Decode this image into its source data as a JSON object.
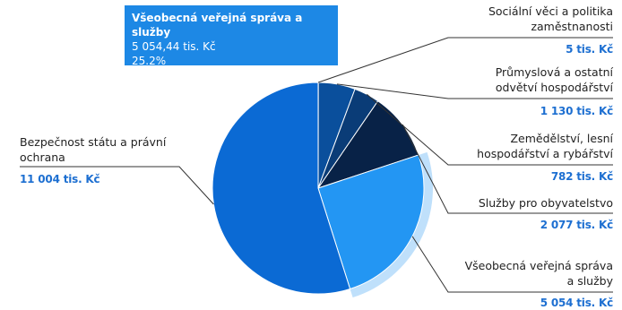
{
  "tooltip": {
    "title": "Všeobecná veřejná správa a služby",
    "value": "5 054,44 tis. Kč",
    "percent": "25.2%"
  },
  "colors": {
    "slice_bezpecnost": "#0b6ad4",
    "slice_socialni": "#0d5fb8",
    "slice_prumysl": "#0a4f9c",
    "slice_zemedelstvi": "#0a3c77",
    "slice_sluzby": "#082247",
    "slice_verejna": "#2396f3",
    "slice_hover_halo": "#bfe0fb",
    "connector": "#333333",
    "value_text": "#1d6fd1"
  },
  "chart_data": {
    "type": "pie",
    "slices": [
      {
        "name_lines": [
          "Bezpečnost státu a právní",
          "ochrana"
        ],
        "value": 11004,
        "value_label": "11 004 tis. Kč",
        "color_key": "slice_bezpecnost"
      },
      {
        "name_lines": [
          "Sociální věci a politika",
          "zaměstnanosti"
        ],
        "value": 5,
        "value_label": "5 tis. Kč",
        "color_key": "slice_socialni"
      },
      {
        "name_lines": [
          "Průmyslová a ostatní",
          "odvětví hospodářství"
        ],
        "value": 1130,
        "value_label": "1 130 tis. Kč",
        "color_key": "slice_prumysl"
      },
      {
        "name_lines": [
          "Zemědělství, lesní",
          "hospodářství a rybářství"
        ],
        "value": 782,
        "value_label": "782 tis. Kč",
        "color_key": "slice_zemedelstvi"
      },
      {
        "name_lines": [
          "Služby pro obyvatelstvo"
        ],
        "value": 2077,
        "value_label": "2 077 tis. Kč",
        "color_key": "slice_sluzby"
      },
      {
        "name_lines": [
          "Všeobecná veřejná správa",
          "a služby"
        ],
        "value": 5054.44,
        "value_label": "5 054 tis. Kč",
        "color_key": "slice_verejna",
        "highlighted": true
      }
    ]
  }
}
